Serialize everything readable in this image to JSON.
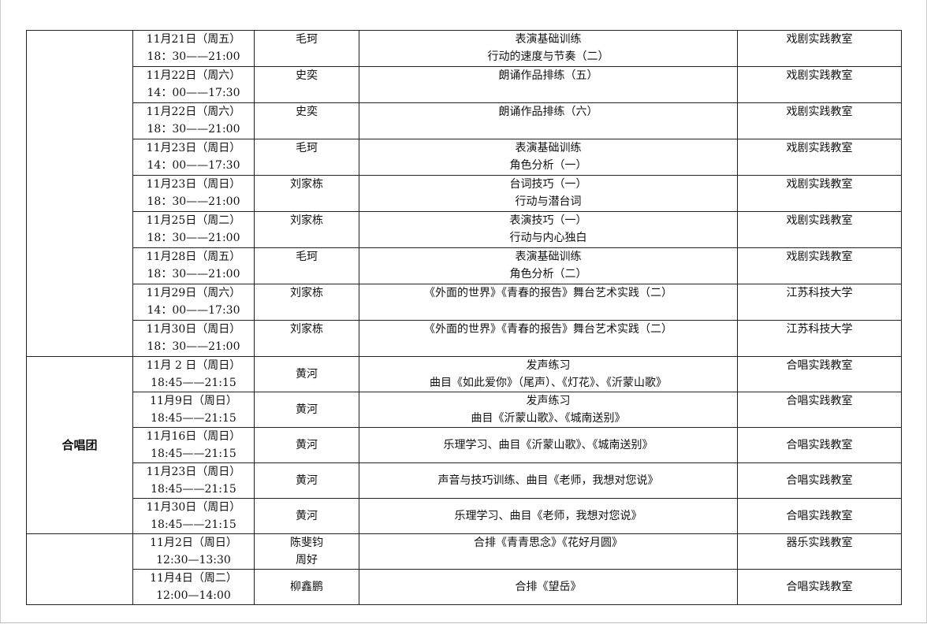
{
  "sections": [
    {
      "group": "",
      "rows": [
        {
          "date": "11月21日（周五）",
          "time": "18：30——21:00",
          "teacher": [
            "毛珂"
          ],
          "content": [
            "表演基础训练",
            "行动的速度与节奏（二）"
          ],
          "location": "戏剧实践教室"
        },
        {
          "date": "11月22日（周六）",
          "time": "14：00——17:30",
          "teacher": [
            "史奕"
          ],
          "content": [
            "朗诵作品排练（五）"
          ],
          "location": "戏剧实践教室"
        },
        {
          "date": "11月22日（周六）",
          "time": "18：30——21:00",
          "teacher": [
            "史奕"
          ],
          "content": [
            "朗诵作品排练（六）"
          ],
          "location": "戏剧实践教室"
        },
        {
          "date": "11月23日（周日）",
          "time": "14：00——17:30",
          "teacher": [
            "毛珂"
          ],
          "content": [
            "表演基础训练",
            "角色分析（一）"
          ],
          "location": "戏剧实践教室"
        },
        {
          "date": "11月23日（周日）",
          "time": "18：30——21:00",
          "teacher": [
            "刘家栋"
          ],
          "content": [
            "台词技巧（一）",
            "行动与潜台词"
          ],
          "location": "戏剧实践教室"
        },
        {
          "date": "11月25日（周二）",
          "time": "18：30——21:00",
          "teacher": [
            "刘家栋"
          ],
          "content": [
            "表演技巧（一）",
            "行动与内心独白"
          ],
          "location": "戏剧实践教室"
        },
        {
          "date": "11月28日（周五）",
          "time": "18：30——21:00",
          "teacher": [
            "毛珂"
          ],
          "content": [
            "表演基础训练",
            "角色分析（二）"
          ],
          "location": "戏剧实践教室"
        },
        {
          "date": "11月29日（周六）",
          "time": "14：00——17:30",
          "teacher": [
            "刘家栋"
          ],
          "content": [
            "《外面的世界》《青春的报告》舞台艺术实践（二）"
          ],
          "location": "江苏科技大学"
        },
        {
          "date": "11月30日（周日）",
          "time": "18：30——21:00",
          "teacher": [
            "刘家栋"
          ],
          "content": [
            "《外面的世界》《青春的报告》舞台艺术实践（二）"
          ],
          "location": "江苏科技大学"
        }
      ]
    },
    {
      "group": "合唱团",
      "rows": [
        {
          "date": "11月 2 日（周日）",
          "time": "18:45——21:15",
          "teacher": [
            "黄河"
          ],
          "content": [
            "发声练习",
            "曲目《如此爱你》（尾声）、《灯花》、《沂蒙山歌》"
          ],
          "location": "合唱实践教室"
        },
        {
          "date": "11月9日（周日）",
          "time": "18:45——21:15",
          "teacher": [
            "黄河"
          ],
          "content": [
            "发声练习",
            "曲目《沂蒙山歌》、《城南送别》"
          ],
          "location": "合唱实践教室"
        },
        {
          "date": "11月16日（周日）",
          "time": "18:45——21:15",
          "teacher": [
            "黄河"
          ],
          "content": [
            "乐理学习、曲目《沂蒙山歌》、《城南送别》"
          ],
          "location": "合唱实践教室"
        },
        {
          "date": "11月23日（周日）",
          "time": "18:45——21:15",
          "teacher": [
            "黄河"
          ],
          "content": [
            "声音与技巧训练、曲目《老师，我想对您说》"
          ],
          "location": "合唱实践教室"
        },
        {
          "date": "11月30日（周日）",
          "time": "18:45——21:15",
          "teacher": [
            "黄河"
          ],
          "content": [
            "乐理学习、曲目《老师，我想对您说》"
          ],
          "location": "合唱实践教室"
        }
      ]
    },
    {
      "group": "",
      "rows": [
        {
          "date": "11月2日（周日）",
          "time": "12:30—13:30",
          "teacher": [
            "陈斐钧",
            "周好"
          ],
          "content": [
            "合排《青青思念》《花好月圆》"
          ],
          "location": "器乐实践教室"
        },
        {
          "date": "11月4日（周二）",
          "time": "12:00—14:00",
          "teacher": [
            "柳鑫鹏"
          ],
          "content": [
            "合排《望岳》"
          ],
          "location": "合唱实践教室"
        }
      ]
    }
  ]
}
